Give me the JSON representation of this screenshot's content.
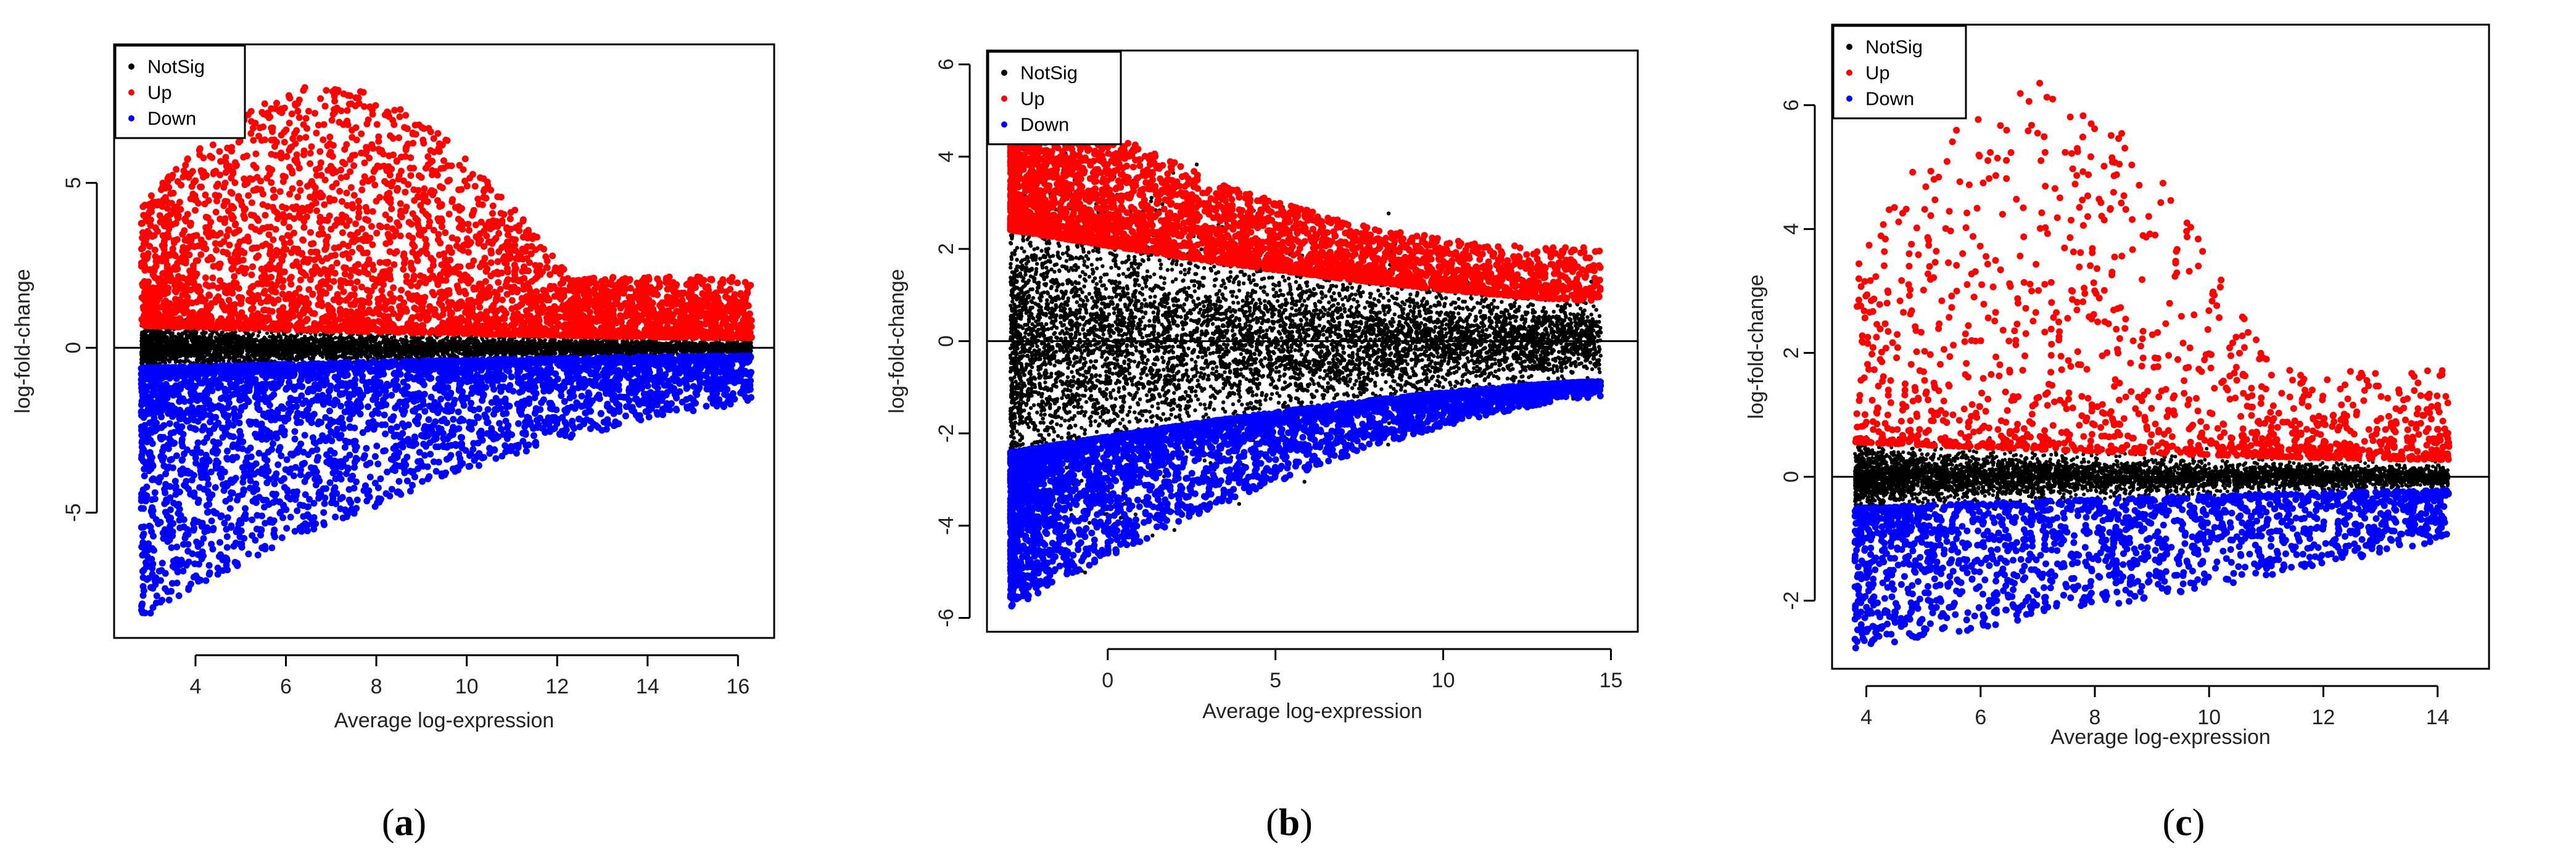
{
  "chart_data": [
    {
      "type": "scatter",
      "panel_label": "a",
      "xlabel": "Average log-expression",
      "ylabel": "log-fold-change",
      "xlim": [
        2.2,
        16.8
      ],
      "ylim": [
        -8.8,
        9.2
      ],
      "xticks": [
        4,
        6,
        8,
        10,
        12,
        14,
        16
      ],
      "yticks": [
        -5,
        0,
        5
      ],
      "hline": 0,
      "legend": {
        "position": "top-left",
        "entries": [
          "NotSig",
          "Up",
          "Down"
        ]
      },
      "colors": {
        "NotSig": "#000000",
        "Up": "#ff0000",
        "Down": "#0000ff"
      },
      "x_range": [
        2.8,
        16.3
      ],
      "notsig_width": 0.45,
      "up_max": 8.6,
      "down_min": -8.2
    },
    {
      "type": "scatter",
      "panel_label": "b",
      "xlabel": "Average log-expression",
      "ylabel": "log-fold-change",
      "xlim": [
        -3.6,
        15.8
      ],
      "ylim": [
        -6.3,
        6.3
      ],
      "xticks": [
        0,
        5,
        10,
        15
      ],
      "yticks": [
        -6,
        -4,
        -2,
        0,
        2,
        4,
        6
      ],
      "hline": 0,
      "legend": {
        "position": "top-left",
        "entries": [
          "NotSig",
          "Up",
          "Down"
        ]
      },
      "colors": {
        "NotSig": "#000000",
        "Up": "#ff0000",
        "Down": "#0000ff"
      },
      "x_range": [
        -2.9,
        14.7
      ],
      "notsig_width": 1.9,
      "up_max": 5.8,
      "down_min": -5.8
    },
    {
      "type": "scatter",
      "panel_label": "c",
      "xlabel": "Average log-expression",
      "ylabel": "log-fold-change",
      "xlim": [
        3.4,
        14.9
      ],
      "ylim": [
        -3.1,
        7.3
      ],
      "xticks": [
        4,
        6,
        8,
        10,
        12,
        14
      ],
      "yticks": [
        -2,
        0,
        2,
        4,
        6
      ],
      "hline": 0,
      "legend": {
        "position": "top-left",
        "entries": [
          "NotSig",
          "Up",
          "Down"
        ]
      },
      "colors": {
        "NotSig": "#000000",
        "Up": "#ff0000",
        "Down": "#0000ff"
      },
      "x_range": [
        3.8,
        14.2
      ],
      "notsig_width": 0.35,
      "up_max": 6.9,
      "down_min": -2.8
    }
  ],
  "captions": [
    {
      "open": "(",
      "letter": "a",
      "close": ")"
    },
    {
      "open": "(",
      "letter": "b",
      "close": ")"
    },
    {
      "open": "(",
      "letter": "c",
      "close": ")"
    }
  ]
}
